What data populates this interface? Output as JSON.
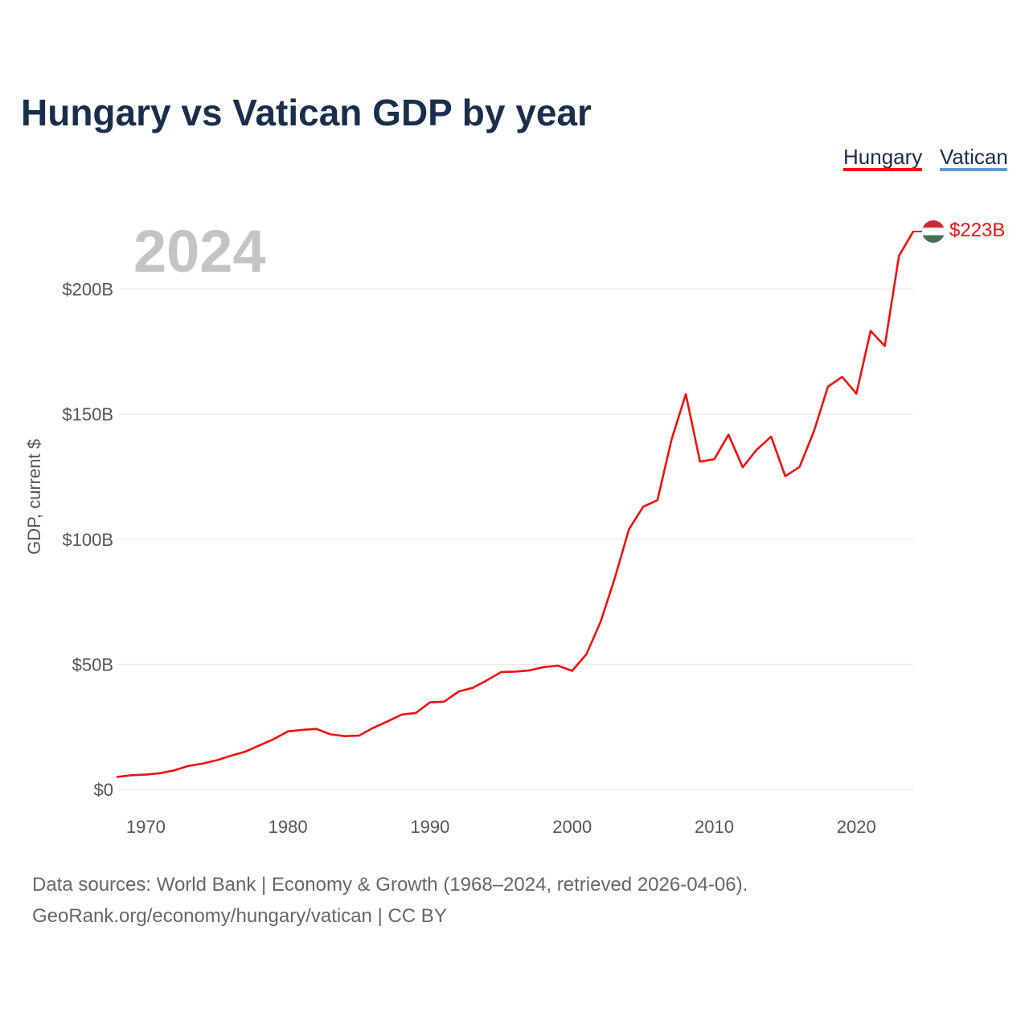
{
  "chart_data": {
    "type": "line",
    "title": "Hungary vs Vatican GDP by year",
    "ylabel": "GDP, current $",
    "xlabel": "",
    "current_year": "2024",
    "xlim": [
      1968,
      2024
    ],
    "ylim": [
      0,
      223
    ],
    "y_ticks": [
      {
        "value": 0,
        "label": "$0"
      },
      {
        "value": 50,
        "label": "$50B"
      },
      {
        "value": 100,
        "label": "$100B"
      },
      {
        "value": 150,
        "label": "$150B"
      },
      {
        "value": 200,
        "label": "$200B"
      }
    ],
    "x_ticks": [
      {
        "value": 1970,
        "label": "1970"
      },
      {
        "value": 1980,
        "label": "1980"
      },
      {
        "value": 1990,
        "label": "1990"
      },
      {
        "value": 2000,
        "label": "2000"
      },
      {
        "value": 2010,
        "label": "2010"
      },
      {
        "value": 2020,
        "label": "2020"
      }
    ],
    "legend": [
      {
        "name": "Hungary",
        "color": "#ee1111"
      },
      {
        "name": "Vatican",
        "color": "#5b9bd5"
      }
    ],
    "series": [
      {
        "name": "Hungary",
        "color": "#ee1111",
        "end_label": "$223B",
        "flag_colors": [
          "#ce2939",
          "#ffffff",
          "#477050"
        ],
        "x": [
          1968,
          1969,
          1970,
          1971,
          1972,
          1973,
          1974,
          1975,
          1976,
          1977,
          1978,
          1979,
          1980,
          1981,
          1982,
          1983,
          1984,
          1985,
          1986,
          1987,
          1988,
          1989,
          1990,
          1991,
          1992,
          1993,
          1994,
          1995,
          1996,
          1997,
          1998,
          1999,
          2000,
          2001,
          2002,
          2003,
          2004,
          2005,
          2006,
          2007,
          2008,
          2009,
          2010,
          2011,
          2012,
          2013,
          2014,
          2015,
          2016,
          2017,
          2018,
          2019,
          2020,
          2021,
          2022,
          2023,
          2024
        ],
        "values": [
          5.0,
          5.7,
          5.9,
          6.5,
          7.6,
          9.4,
          10.3,
          11.7,
          13.5,
          15.1,
          17.6,
          20.1,
          23.2,
          23.8,
          24.2,
          22.0,
          21.3,
          21.5,
          24.6,
          27.2,
          29.9,
          30.6,
          34.8,
          35.1,
          39.1,
          40.6,
          43.6,
          46.9,
          47.1,
          47.6,
          48.9,
          49.5,
          47.4,
          54.0,
          67.0,
          84.5,
          104.0,
          113.0,
          115.6,
          140.0,
          158.0,
          131.0,
          132.0,
          141.8,
          128.8,
          135.9,
          141.0,
          125.2,
          128.9,
          143.0,
          161.0,
          164.9,
          158.2,
          183.3,
          177.2,
          213.3,
          223.0
        ]
      },
      {
        "name": "Vatican",
        "color": "#5b9bd5",
        "x": [],
        "values": []
      }
    ]
  },
  "source": {
    "line1": "Data sources: World Bank | Economy & Growth (1968–2024, retrieved 2026-04-06).",
    "line2": "GeoRank.org/economy/hungary/vatican | CC BY"
  }
}
